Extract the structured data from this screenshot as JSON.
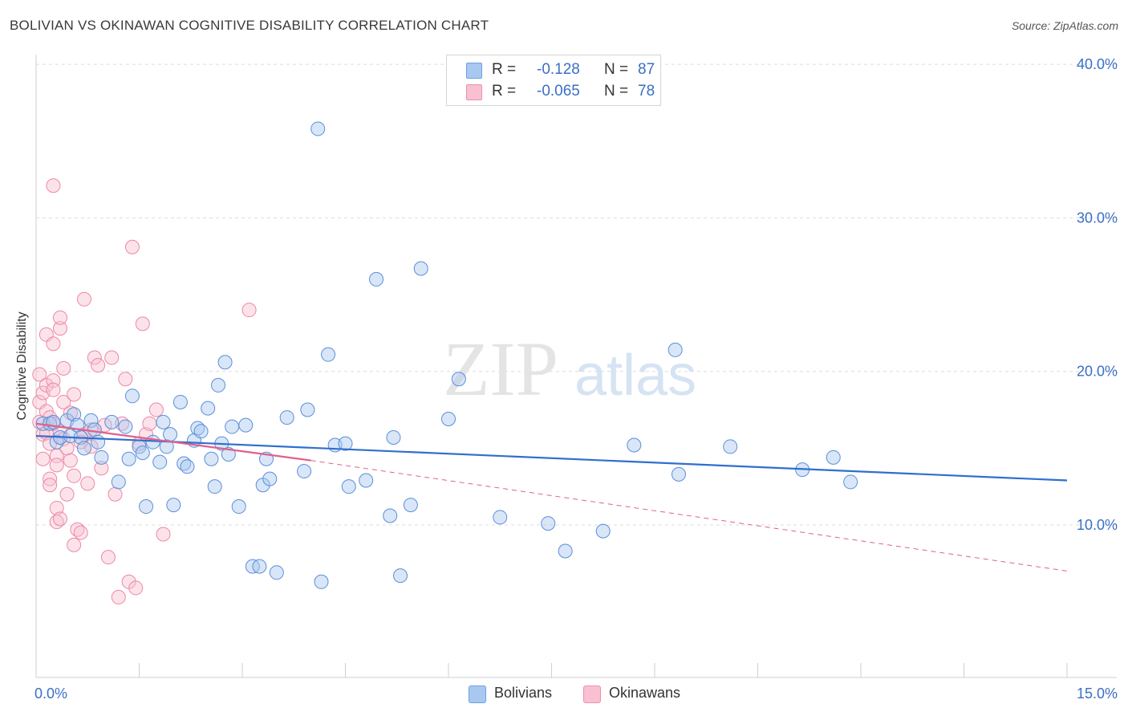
{
  "title": "BOLIVIAN VS OKINAWAN COGNITIVE DISABILITY CORRELATION CHART",
  "source": "Source: ZipAtlas.com",
  "watermark": {
    "zip": "ZIP",
    "atlas": "atlas"
  },
  "legend_top": {
    "rows": [
      {
        "r_label": "R =",
        "r_value": "-0.128",
        "n_label": "N =",
        "n_value": "87",
        "color": "#a8c8f0",
        "border": "#6d9fe0"
      },
      {
        "r_label": "R =",
        "r_value": "-0.065",
        "n_label": "N =",
        "n_value": "78",
        "color": "#f8c0d0",
        "border": "#ee8fb0"
      }
    ]
  },
  "legend_bottom": [
    {
      "label": "Bolivians",
      "color": "#a8c8f0",
      "border": "#6d9fe0"
    },
    {
      "label": "Okinawans",
      "color": "#f8c0d0",
      "border": "#ee8fb0"
    }
  ],
  "colors": {
    "blue_fill": "#a8c8f0",
    "blue_stroke": "#5b8fd8",
    "blue_line": "#2f6fce",
    "pink_fill": "#f8c0d0",
    "pink_stroke": "#ec88a8",
    "pink_line": "#e0608c",
    "axis_label": "#3a6fc4",
    "grid": "#dcdcdc"
  },
  "chart_data": {
    "type": "scatter",
    "title": "BOLIVIAN VS OKINAWAN COGNITIVE DISABILITY CORRELATION CHART",
    "xlabel": "",
    "ylabel": "Cognitive Disability",
    "xlim": [
      0,
      15
    ],
    "ylim": [
      1,
      42
    ],
    "x_tick_labels": [
      {
        "value": 0,
        "label": "0.0%"
      },
      {
        "value": 15,
        "label": "15.0%"
      }
    ],
    "y_tick_labels": [
      {
        "value": 10,
        "label": "10.0%"
      },
      {
        "value": 20,
        "label": "20.0%"
      },
      {
        "value": 30,
        "label": "30.0%"
      },
      {
        "value": 40,
        "label": "40.0%"
      }
    ],
    "y_gridlines": [
      10,
      20,
      30,
      40
    ],
    "x_ticks": [
      1.5,
      3.0,
      4.5,
      6.0,
      7.5,
      9.0,
      10.5,
      12.0,
      13.5,
      15.0
    ],
    "series": [
      {
        "name": "Bolivians",
        "points": [
          [
            0.1,
            16.6
          ],
          [
            0.2,
            16.6
          ],
          [
            0.25,
            16.7
          ],
          [
            0.3,
            15.4
          ],
          [
            0.35,
            15.7
          ],
          [
            0.45,
            16.8
          ],
          [
            0.5,
            15.8
          ],
          [
            0.55,
            17.2
          ],
          [
            0.6,
            16.5
          ],
          [
            0.65,
            15.7
          ],
          [
            0.7,
            15.0
          ],
          [
            0.8,
            16.8
          ],
          [
            0.85,
            16.2
          ],
          [
            0.9,
            15.4
          ],
          [
            0.95,
            14.4
          ],
          [
            1.1,
            16.7
          ],
          [
            1.2,
            12.8
          ],
          [
            1.3,
            16.4
          ],
          [
            1.35,
            14.3
          ],
          [
            1.4,
            18.4
          ],
          [
            1.5,
            15.1
          ],
          [
            1.55,
            14.7
          ],
          [
            1.6,
            11.2
          ],
          [
            1.7,
            15.4
          ],
          [
            1.8,
            14.1
          ],
          [
            1.85,
            16.7
          ],
          [
            1.9,
            15.1
          ],
          [
            1.95,
            15.9
          ],
          [
            2.0,
            11.3
          ],
          [
            2.1,
            18.0
          ],
          [
            2.15,
            14.0
          ],
          [
            2.2,
            13.8
          ],
          [
            2.3,
            15.5
          ],
          [
            2.35,
            16.3
          ],
          [
            2.4,
            16.1
          ],
          [
            2.5,
            17.6
          ],
          [
            2.55,
            14.3
          ],
          [
            2.6,
            12.5
          ],
          [
            2.65,
            19.1
          ],
          [
            2.7,
            15.3
          ],
          [
            2.75,
            20.6
          ],
          [
            2.8,
            14.6
          ],
          [
            2.85,
            16.4
          ],
          [
            2.95,
            11.2
          ],
          [
            3.05,
            16.5
          ],
          [
            3.15,
            7.3
          ],
          [
            3.25,
            7.3
          ],
          [
            3.3,
            12.6
          ],
          [
            3.35,
            14.3
          ],
          [
            3.4,
            13.0
          ],
          [
            3.5,
            6.9
          ],
          [
            3.65,
            17.0
          ],
          [
            3.9,
            13.5
          ],
          [
            3.95,
            17.5
          ],
          [
            4.1,
            35.8
          ],
          [
            4.15,
            6.3
          ],
          [
            4.25,
            21.1
          ],
          [
            4.35,
            15.2
          ],
          [
            4.5,
            15.3
          ],
          [
            4.55,
            12.5
          ],
          [
            4.8,
            12.9
          ],
          [
            4.95,
            26.0
          ],
          [
            5.15,
            10.6
          ],
          [
            5.2,
            15.7
          ],
          [
            5.3,
            6.7
          ],
          [
            5.45,
            11.3
          ],
          [
            5.6,
            26.7
          ],
          [
            6.0,
            16.9
          ],
          [
            6.15,
            19.5
          ],
          [
            6.75,
            10.5
          ],
          [
            7.45,
            10.1
          ],
          [
            7.7,
            8.3
          ],
          [
            8.25,
            9.6
          ],
          [
            8.7,
            15.2
          ],
          [
            9.3,
            21.4
          ],
          [
            9.35,
            13.3
          ],
          [
            10.1,
            15.1
          ],
          [
            11.15,
            13.6
          ],
          [
            11.6,
            14.4
          ],
          [
            11.85,
            12.8
          ]
        ],
        "trend": {
          "x": [
            0.0,
            15.0
          ],
          "y": [
            15.8,
            12.9
          ]
        }
      },
      {
        "name": "Okinawans",
        "points": [
          [
            0.05,
            18.0
          ],
          [
            0.05,
            16.7
          ],
          [
            0.05,
            19.8
          ],
          [
            0.1,
            15.9
          ],
          [
            0.1,
            18.6
          ],
          [
            0.1,
            14.3
          ],
          [
            0.15,
            22.4
          ],
          [
            0.15,
            17.4
          ],
          [
            0.15,
            19.1
          ],
          [
            0.15,
            16.0
          ],
          [
            0.2,
            17.0
          ],
          [
            0.2,
            15.3
          ],
          [
            0.2,
            13.0
          ],
          [
            0.2,
            12.6
          ],
          [
            0.25,
            32.1
          ],
          [
            0.25,
            21.8
          ],
          [
            0.25,
            19.4
          ],
          [
            0.25,
            18.8
          ],
          [
            0.3,
            14.5
          ],
          [
            0.3,
            13.9
          ],
          [
            0.3,
            11.1
          ],
          [
            0.3,
            10.2
          ],
          [
            0.35,
            22.8
          ],
          [
            0.35,
            23.5
          ],
          [
            0.35,
            16.1
          ],
          [
            0.4,
            20.2
          ],
          [
            0.4,
            18.0
          ],
          [
            0.4,
            15.6
          ],
          [
            0.45,
            15.0
          ],
          [
            0.45,
            12.0
          ],
          [
            0.5,
            17.3
          ],
          [
            0.5,
            14.2
          ],
          [
            0.55,
            18.5
          ],
          [
            0.55,
            13.2
          ],
          [
            0.6,
            9.7
          ],
          [
            0.65,
            9.5
          ],
          [
            0.7,
            24.7
          ],
          [
            0.7,
            15.9
          ],
          [
            0.75,
            12.7
          ],
          [
            0.8,
            16.2
          ],
          [
            0.8,
            15.1
          ],
          [
            0.85,
            20.9
          ],
          [
            0.9,
            20.4
          ],
          [
            0.95,
            13.7
          ],
          [
            1.0,
            16.5
          ],
          [
            1.05,
            7.9
          ],
          [
            1.1,
            20.9
          ],
          [
            1.15,
            12.0
          ],
          [
            1.2,
            5.3
          ],
          [
            1.25,
            16.6
          ],
          [
            1.3,
            19.5
          ],
          [
            1.35,
            6.3
          ],
          [
            1.4,
            28.1
          ],
          [
            1.45,
            5.9
          ],
          [
            1.5,
            15.3
          ],
          [
            1.55,
            23.1
          ],
          [
            1.6,
            15.9
          ],
          [
            1.65,
            16.6
          ],
          [
            1.75,
            17.5
          ],
          [
            1.85,
            9.4
          ],
          [
            3.1,
            24.0
          ],
          [
            0.55,
            8.7
          ],
          [
            0.35,
            10.4
          ],
          [
            0.65,
            15.4
          ],
          [
            0.25,
            16.6
          ]
        ],
        "trend": {
          "x": [
            0.0,
            4.0
          ],
          "y": [
            16.6,
            14.2
          ]
        },
        "trend_extrapolated": {
          "x": [
            4.0,
            15.0
          ],
          "y": [
            14.2,
            7.0
          ]
        }
      }
    ]
  }
}
